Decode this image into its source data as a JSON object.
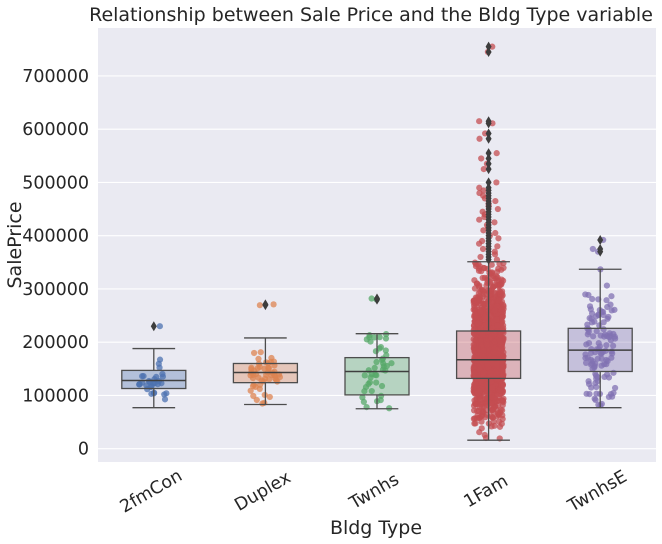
{
  "chart_data": {
    "type": "box",
    "title": "Relationship between Sale Price and the Bldg Type variable",
    "xlabel": "Bldg Type",
    "ylabel": "SalePrice",
    "ylim": [
      -25000,
      790000
    ],
    "yticks": [
      0,
      100000,
      200000,
      300000,
      400000,
      500000,
      600000,
      700000
    ],
    "ytick_labels": [
      "0",
      "100000",
      "200000",
      "300000",
      "400000",
      "500000",
      "600000",
      "700000"
    ],
    "categories": [
      "2fmCon",
      "Duplex",
      "Twnhs",
      "1Fam",
      "TwnhsE"
    ],
    "colors": [
      "#4c72b0",
      "#dd8452",
      "#55a868",
      "#c44e52",
      "#8172b3"
    ],
    "grid": true,
    "background": "#eaeaf2",
    "boxes": [
      {
        "category": "2fmCon",
        "whisker_low": 77000,
        "q1": 113000,
        "median": 128000,
        "q3": 147000,
        "whisker_high": 188000,
        "outliers": [
          230000
        ]
      },
      {
        "category": "Duplex",
        "whisker_low": 83000,
        "q1": 124000,
        "median": 143000,
        "q3": 160000,
        "whisker_high": 208000,
        "outliers": [
          269500,
          271000
        ]
      },
      {
        "category": "Twnhs",
        "whisker_low": 75000,
        "q1": 101000,
        "median": 145000,
        "q3": 171000,
        "whisker_high": 216000,
        "outliers": [
          280000,
          282000
        ]
      },
      {
        "category": "1Fam",
        "whisker_low": 16000,
        "q1": 132000,
        "median": 167000,
        "q3": 221000,
        "whisker_high": 351000,
        "outliers": [
          355000,
          360000,
          365000,
          370000,
          375000,
          380000,
          385000,
          390000,
          395000,
          400000,
          405000,
          410000,
          415000,
          420000,
          425000,
          430000,
          435000,
          440000,
          445000,
          450000,
          455000,
          460000,
          465000,
          470000,
          475000,
          480000,
          485000,
          490000,
          500000,
          525000,
          535000,
          545000,
          555000,
          582000,
          592000,
          611000,
          615000,
          745000,
          755000
        ]
      },
      {
        "category": "TwnhsE",
        "whisker_low": 77000,
        "q1": 145000,
        "median": 185000,
        "q3": 226000,
        "whisker_high": 337000,
        "outliers": [
          370000,
          375000,
          392000
        ]
      }
    ]
  }
}
